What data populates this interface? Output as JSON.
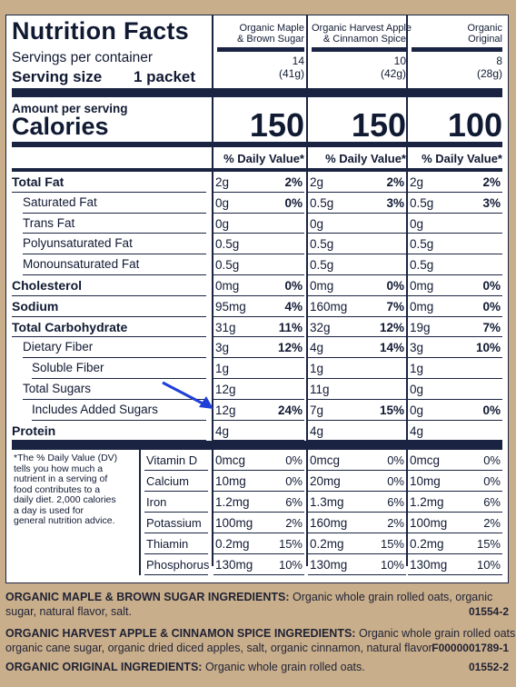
{
  "panel": {
    "title": "Nutrition Facts",
    "servings_label": "Servings per container",
    "serving_size_label": "Serving size",
    "serving_size_value": "1 packet",
    "amount_label": "Amount per serving",
    "calories_label": "Calories",
    "dv_label": "% Daily Value*"
  },
  "columns": [
    {
      "name_line1": "Organic Maple",
      "name_line2": "& Brown Sugar",
      "servings": "14",
      "weight": "(41g)",
      "calories": "150"
    },
    {
      "name_line1": "Organic Harvest Apple",
      "name_line2": "& Cinnamon Spice",
      "servings": "10",
      "weight": "(42g)",
      "calories": "150"
    },
    {
      "name_line1": "Organic",
      "name_line2": "Original",
      "servings": "8",
      "weight": "(28g)",
      "calories": "100"
    }
  ],
  "nutrients": [
    {
      "label": "Total Fat",
      "bold": true,
      "indent": 0,
      "values": [
        [
          "2g",
          "2%"
        ],
        [
          "2g",
          "2%"
        ],
        [
          "2g",
          "2%"
        ]
      ]
    },
    {
      "label": "Saturated Fat",
      "bold": false,
      "indent": 1,
      "values": [
        [
          "0g",
          "0%"
        ],
        [
          "0.5g",
          "3%"
        ],
        [
          "0.5g",
          "3%"
        ]
      ]
    },
    {
      "label": "Trans Fat",
      "bold": false,
      "indent": 1,
      "values": [
        [
          "0g",
          ""
        ],
        [
          "0g",
          ""
        ],
        [
          "0g",
          ""
        ]
      ]
    },
    {
      "label": "Polyunsaturated Fat",
      "bold": false,
      "indent": 1,
      "values": [
        [
          "0.5g",
          ""
        ],
        [
          "0.5g",
          ""
        ],
        [
          "0.5g",
          ""
        ]
      ]
    },
    {
      "label": "Monounsaturated Fat",
      "bold": false,
      "indent": 1,
      "values": [
        [
          "0.5g",
          ""
        ],
        [
          "0.5g",
          ""
        ],
        [
          "0.5g",
          ""
        ]
      ]
    },
    {
      "label": "Cholesterol",
      "bold": true,
      "indent": 0,
      "values": [
        [
          "0mg",
          "0%"
        ],
        [
          "0mg",
          "0%"
        ],
        [
          "0mg",
          "0%"
        ]
      ]
    },
    {
      "label": "Sodium",
      "bold": true,
      "indent": 0,
      "values": [
        [
          "95mg",
          "4%"
        ],
        [
          "160mg",
          "7%"
        ],
        [
          "0mg",
          "0%"
        ]
      ]
    },
    {
      "label": "Total Carbohydrate",
      "bold": true,
      "indent": 0,
      "values": [
        [
          "31g",
          "11%"
        ],
        [
          "32g",
          "12%"
        ],
        [
          "19g",
          "7%"
        ]
      ]
    },
    {
      "label": "Dietary Fiber",
      "bold": false,
      "indent": 1,
      "values": [
        [
          "3g",
          "12%"
        ],
        [
          "4g",
          "14%"
        ],
        [
          "3g",
          "10%"
        ]
      ]
    },
    {
      "label": "Soluble Fiber",
      "bold": false,
      "indent": 2,
      "values": [
        [
          "1g",
          ""
        ],
        [
          "1g",
          ""
        ],
        [
          "1g",
          ""
        ]
      ]
    },
    {
      "label": "Total Sugars",
      "bold": false,
      "indent": 1,
      "values": [
        [
          "12g",
          ""
        ],
        [
          "11g",
          ""
        ],
        [
          "0g",
          ""
        ]
      ]
    },
    {
      "label": "Includes Added Sugars",
      "bold": false,
      "indent": 2,
      "values": [
        [
          "12g",
          "24%"
        ],
        [
          "7g",
          "15%"
        ],
        [
          "0g",
          "0%"
        ]
      ]
    },
    {
      "label": "Protein",
      "bold": true,
      "indent": 0,
      "values": [
        [
          "4g",
          ""
        ],
        [
          "4g",
          ""
        ],
        [
          "4g",
          ""
        ]
      ]
    }
  ],
  "vitamins": [
    {
      "label": "Vitamin D",
      "values": [
        [
          "0mcg",
          "0%"
        ],
        [
          "0mcg",
          "0%"
        ],
        [
          "0mcg",
          "0%"
        ]
      ]
    },
    {
      "label": "Calcium",
      "values": [
        [
          "10mg",
          "0%"
        ],
        [
          "20mg",
          "0%"
        ],
        [
          "10mg",
          "0%"
        ]
      ]
    },
    {
      "label": "Iron",
      "values": [
        [
          "1.2mg",
          "6%"
        ],
        [
          "1.3mg",
          "6%"
        ],
        [
          "1.2mg",
          "6%"
        ]
      ]
    },
    {
      "label": "Potassium",
      "values": [
        [
          "100mg",
          "2%"
        ],
        [
          "160mg",
          "2%"
        ],
        [
          "100mg",
          "2%"
        ]
      ]
    },
    {
      "label": "Thiamin",
      "values": [
        [
          "0.2mg",
          "15%"
        ],
        [
          "0.2mg",
          "15%"
        ],
        [
          "0.2mg",
          "15%"
        ]
      ]
    },
    {
      "label": "Phosphorus",
      "values": [
        [
          "130mg",
          "10%"
        ],
        [
          "130mg",
          "10%"
        ],
        [
          "130mg",
          "10%"
        ]
      ]
    }
  ],
  "footnote": [
    "*The % Daily Value (DV)",
    "tells you how much a",
    "nutrient in a serving of",
    "food contributes to a",
    "daily diet. 2,000 calories",
    "a day is used for",
    "general nutrition advice."
  ],
  "arrow_color": "#1f3fd6",
  "ingredients": [
    {
      "heading": "ORGANIC MAPLE & BROWN SUGAR INGREDIENTS:",
      "line1": "Organic whole grain rolled oats, organic",
      "line2": "sugar, natural flavor, salt.",
      "code": "01554-2"
    },
    {
      "heading": "ORGANIC HARVEST APPLE & CINNAMON SPICE INGREDIENTS:",
      "line1": "Organic whole grain rolled oats,",
      "line2": "organic cane sugar, organic dried diced apples, salt, organic cinnamon, natural flavor.",
      "code": "F0000001789-1"
    },
    {
      "heading": "ORGANIC ORIGINAL INGREDIENTS:",
      "line1": "Organic whole grain rolled oats.",
      "line2": "",
      "code": "01552-2"
    }
  ]
}
